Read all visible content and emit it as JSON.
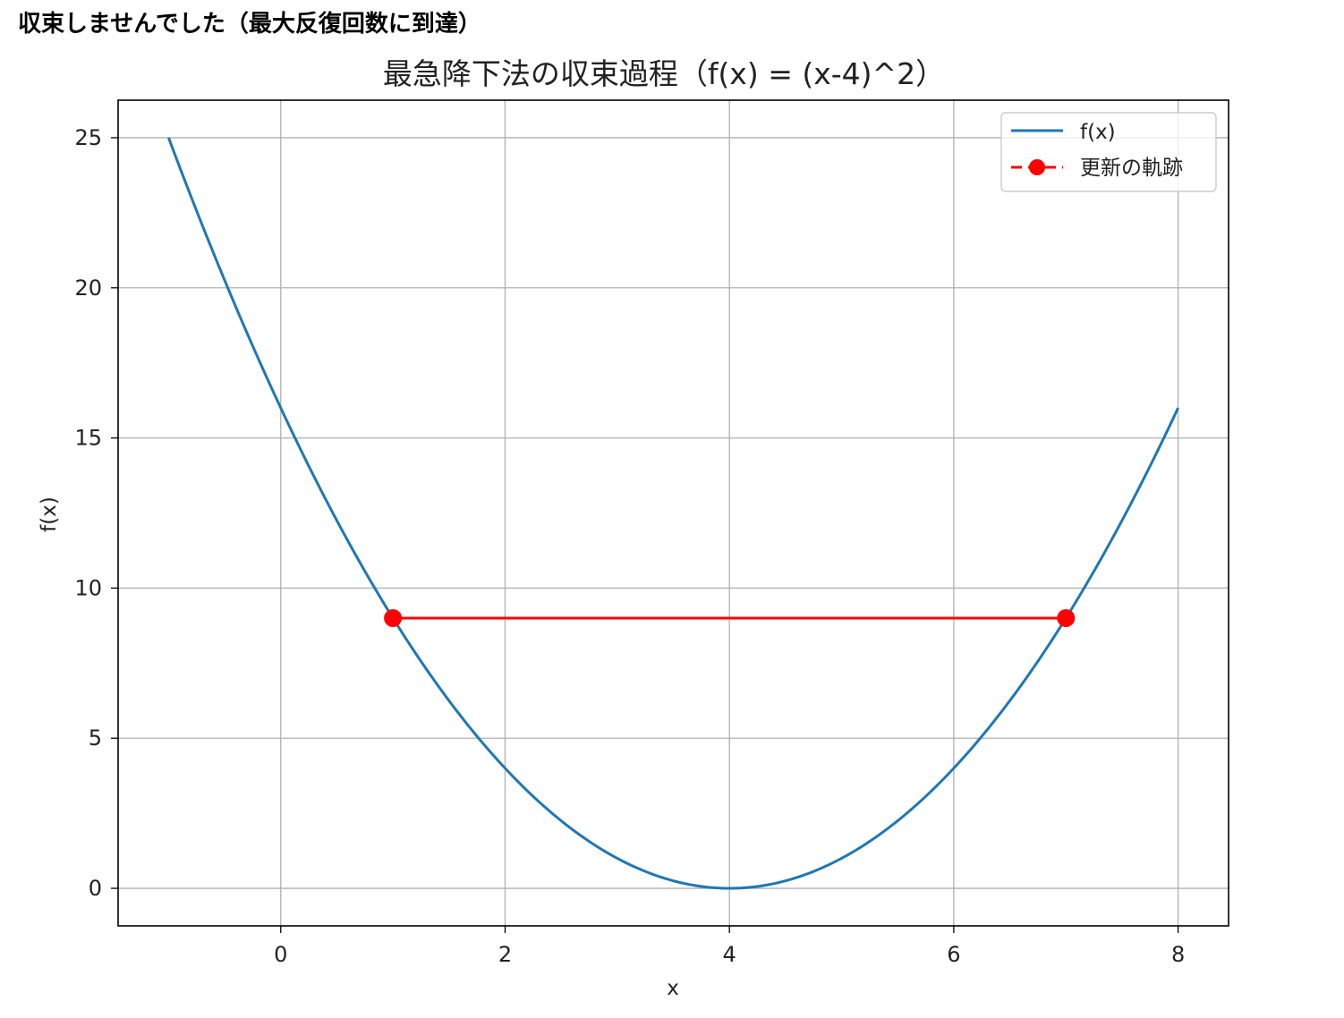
{
  "status_message": "収束しませんでした（最大反復回数に到達）",
  "chart_data": {
    "type": "line",
    "title": "最急降下法の収束過程（f(x) = (x-4)^2）",
    "xlabel": "x",
    "ylabel": "f(x)",
    "xlim": [
      -1.45,
      8.45
    ],
    "ylim": [
      -1.25,
      26.25
    ],
    "x_ticks": [
      0,
      2,
      4,
      6,
      8
    ],
    "y_ticks": [
      0,
      5,
      10,
      15,
      20,
      25
    ],
    "grid": true,
    "legend_position": "upper right",
    "series": [
      {
        "name": "f(x)",
        "kind": "curve",
        "color": "#1f77b4",
        "function": "(x-4)^2",
        "x_range": [
          -1,
          8
        ]
      },
      {
        "name": "更新の軌跡",
        "kind": "line-marker",
        "color": "#ff0000",
        "points": [
          {
            "x": 1,
            "y": 9
          },
          {
            "x": 7,
            "y": 9
          }
        ]
      }
    ]
  }
}
